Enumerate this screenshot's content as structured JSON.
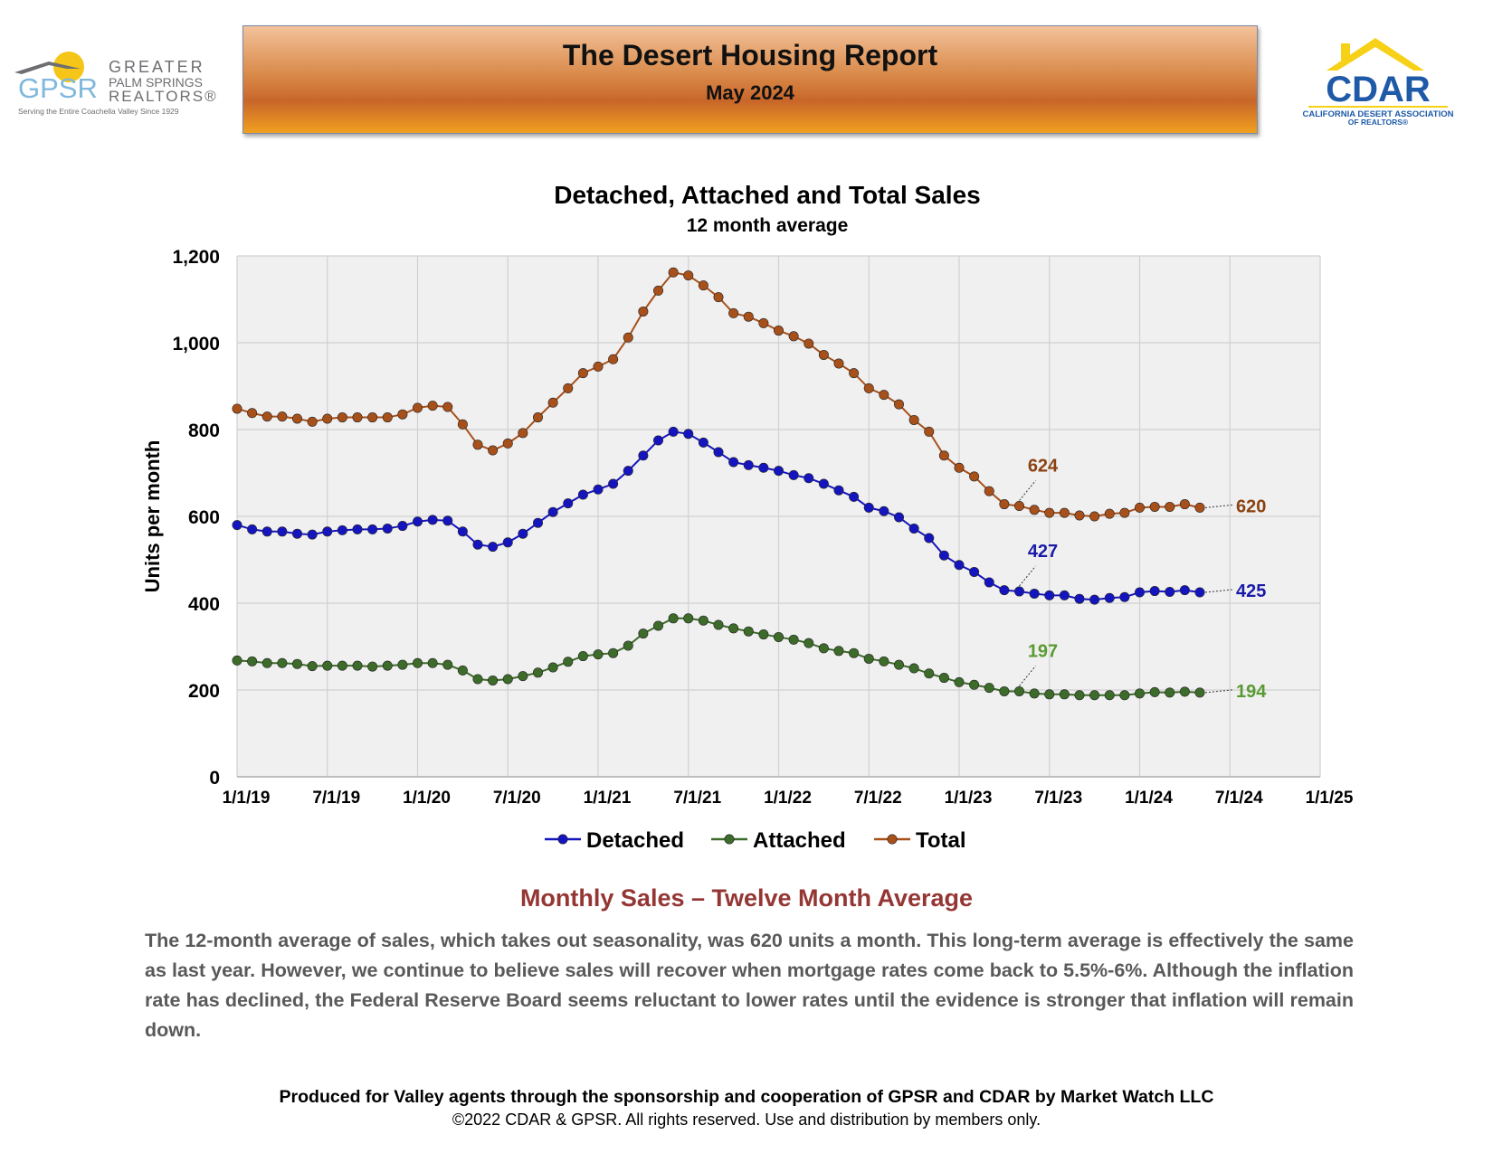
{
  "header": {
    "title": "The Desert Housing Report",
    "date": "May 2024"
  },
  "gpsr_logo": {
    "abbr": "GPSR",
    "line1": "GREATER",
    "line2": "PALM SPRINGS",
    "line3": "REALTORS®",
    "tagline": "Serving the Entire Coachella Valley Since 1929"
  },
  "cdar_logo": {
    "abbr": "CDAR",
    "line1": "CALIFORNIA DESERT ASSOCIATION",
    "line2": "OF REALTORS®"
  },
  "colors": {
    "detached": "#1515c0",
    "attached": "#3d6b2a",
    "total": "#a8501a",
    "detached_label": "#1a1aa8",
    "attached_label": "#5a9a32",
    "total_label": "#8a4210"
  },
  "chart_data": {
    "type": "line",
    "title": "Detached, Attached and Total Sales",
    "subtitle": "12 month average",
    "xlabel": "",
    "ylabel": "Units per month",
    "ylim": [
      0,
      1200
    ],
    "yticks": [
      0,
      200,
      400,
      600,
      800,
      1000,
      1200
    ],
    "ytick_labels": [
      "0",
      "200",
      "400",
      "600",
      "800",
      "1,000",
      "1,200"
    ],
    "x_start": "1/1/19",
    "x_end": "1/1/25",
    "xtick_labels": [
      "1/1/19",
      "7/1/19",
      "1/1/20",
      "7/1/20",
      "1/1/21",
      "7/1/21",
      "1/1/22",
      "7/1/22",
      "1/1/23",
      "7/1/23",
      "1/1/24",
      "7/1/24",
      "1/1/25"
    ],
    "grid": true,
    "legend_position": "bottom",
    "series": [
      {
        "name": "Detached",
        "values": [
          580,
          570,
          565,
          565,
          560,
          558,
          565,
          568,
          570,
          570,
          572,
          578,
          588,
          592,
          590,
          565,
          535,
          530,
          540,
          560,
          585,
          610,
          630,
          650,
          662,
          675,
          705,
          740,
          775,
          795,
          790,
          770,
          748,
          725,
          718,
          712,
          705,
          695,
          688,
          675,
          660,
          645,
          620,
          612,
          598,
          572,
          550,
          510,
          488,
          472,
          448,
          430,
          427,
          422,
          418,
          418,
          410,
          408,
          412,
          414,
          425,
          428,
          426,
          430,
          425
        ]
      },
      {
        "name": "Attached",
        "values": [
          268,
          266,
          262,
          262,
          260,
          255,
          256,
          256,
          256,
          254,
          256,
          258,
          262,
          262,
          258,
          245,
          225,
          222,
          225,
          232,
          240,
          252,
          265,
          278,
          282,
          285,
          302,
          330,
          348,
          365,
          365,
          360,
          350,
          342,
          335,
          328,
          322,
          316,
          308,
          296,
          290,
          285,
          272,
          266,
          258,
          250,
          238,
          228,
          218,
          212,
          205,
          197,
          197,
          192,
          190,
          190,
          188,
          188,
          188,
          188,
          192,
          195,
          194,
          196,
          194
        ]
      },
      {
        "name": "Total",
        "values": [
          848,
          838,
          830,
          830,
          825,
          818,
          825,
          828,
          828,
          828,
          828,
          835,
          850,
          855,
          852,
          812,
          765,
          752,
          768,
          792,
          828,
          862,
          895,
          930,
          945,
          962,
          1012,
          1072,
          1120,
          1162,
          1155,
          1132,
          1105,
          1068,
          1060,
          1045,
          1028,
          1015,
          998,
          972,
          952,
          930,
          895,
          880,
          858,
          822,
          795,
          740,
          712,
          692,
          658,
          628,
          624,
          615,
          608,
          608,
          602,
          600,
          606,
          608,
          620,
          622,
          622,
          628,
          620
        ]
      }
    ],
    "annotations": [
      {
        "series": "Total",
        "index": 52,
        "text": "624"
      },
      {
        "series": "Total",
        "index": 64,
        "text": "620"
      },
      {
        "series": "Detached",
        "index": 52,
        "text": "427"
      },
      {
        "series": "Detached",
        "index": 64,
        "text": "425"
      },
      {
        "series": "Attached",
        "index": 52,
        "text": "197"
      },
      {
        "series": "Attached",
        "index": 64,
        "text": "194"
      }
    ]
  },
  "section": {
    "heading": "Monthly Sales – Twelve Month Average",
    "body": "The 12-month average of sales, which takes out seasonality, was 620 units a month. This long-term average is effectively the same as last year. However, we continue to believe sales will recover when mortgage rates come back to 5.5%-6%. Although the inflation rate has declined, the Federal Reserve Board seems reluctant to lower rates until the evidence is stronger that inflation will remain down."
  },
  "footer": {
    "line1": "Produced for Valley agents through the sponsorship and cooperation of GPSR and CDAR by Market Watch LLC",
    "line2": "©2022 CDAR & GPSR.  All rights reserved.  Use and distribution by members only."
  }
}
